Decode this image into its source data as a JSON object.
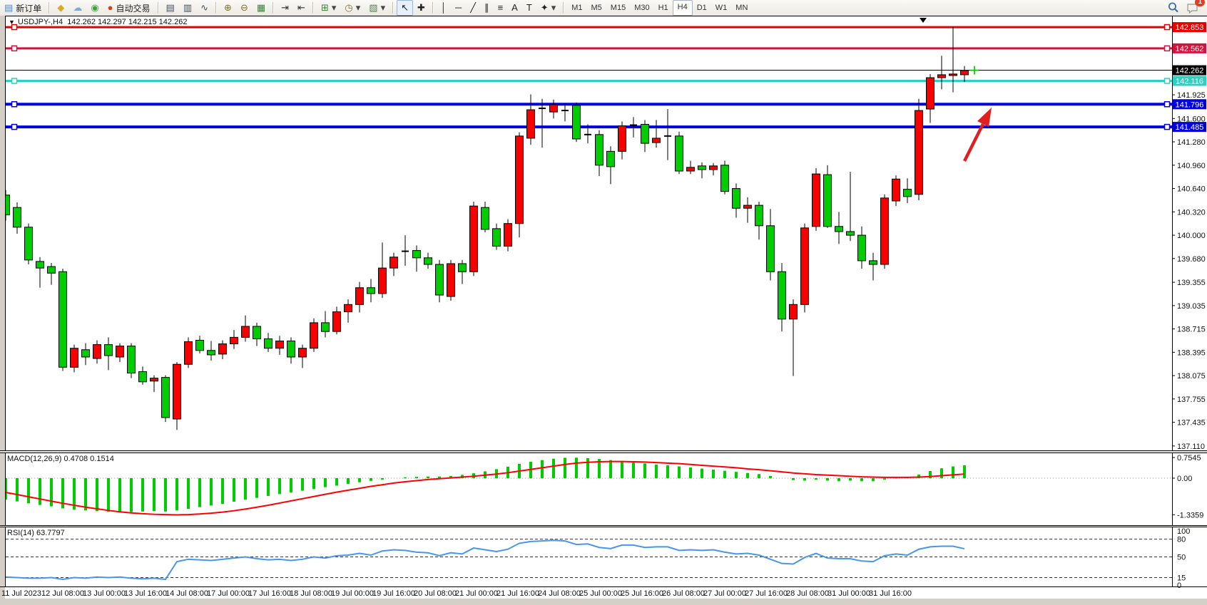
{
  "window": {
    "bg": "#ffffff",
    "chrome_bg": "#ece9e2"
  },
  "toolbar": {
    "new_order_label": "新订单",
    "autotrade_label": "自动交易",
    "chat_badge": "1",
    "icons": {
      "new_order": {
        "glyph": "▤",
        "color": "#5b87c5"
      },
      "gold_chart": {
        "glyph": "◆",
        "color": "#dcaa28"
      },
      "profiles": {
        "glyph": "☁",
        "color": "#7fa8d8"
      },
      "signals": {
        "glyph": "◉",
        "color": "#3fa43f"
      },
      "autotrade": {
        "glyph": "●",
        "color": "#cc4422"
      },
      "bar_chart": {
        "glyph": "▤",
        "color": "#44505c"
      },
      "candle_chart": {
        "glyph": "▥",
        "color": "#44505c"
      },
      "line_chart": {
        "glyph": "∿",
        "color": "#44505c"
      },
      "zoom_in": {
        "glyph": "⊕",
        "color": "#8a6d1f"
      },
      "zoom_out": {
        "glyph": "⊖",
        "color": "#8a6d1f"
      },
      "tile_windows": {
        "glyph": "▦",
        "color": "#3f7f3f"
      },
      "auto_scroll": {
        "glyph": "⇥",
        "color": "#333333"
      },
      "chart_shift": {
        "glyph": "⇤",
        "color": "#333333"
      },
      "indicators": {
        "glyph": "⊞",
        "color": "#2e8b2e"
      },
      "periods": {
        "glyph": "◷",
        "color": "#8a6d1f"
      },
      "templates": {
        "glyph": "▧",
        "color": "#4f7f4f"
      },
      "cursor": {
        "glyph": "↖",
        "color": "#222222"
      },
      "crosshair": {
        "glyph": "✚",
        "color": "#222222"
      },
      "vline": {
        "glyph": "│",
        "color": "#222222"
      },
      "hline": {
        "glyph": "─",
        "color": "#222222"
      },
      "trendline": {
        "glyph": "╱",
        "color": "#222222"
      },
      "channel": {
        "glyph": "∥",
        "color": "#222222"
      },
      "fibonacci": {
        "glyph": "≡",
        "color": "#222222"
      },
      "text": {
        "glyph": "A",
        "color": "#222222"
      },
      "label": {
        "glyph": "T",
        "color": "#222222"
      },
      "shapes": {
        "glyph": "✦",
        "color": "#222222"
      },
      "dropdown": {
        "glyph": "▾",
        "color": "#444444"
      }
    },
    "timeframes": [
      {
        "label": "M1",
        "active": false
      },
      {
        "label": "M5",
        "active": false
      },
      {
        "label": "M15",
        "active": false
      },
      {
        "label": "M30",
        "active": false
      },
      {
        "label": "H1",
        "active": false
      },
      {
        "label": "H4",
        "active": true
      },
      {
        "label": "D1",
        "active": false
      },
      {
        "label": "W1",
        "active": false
      },
      {
        "label": "MN",
        "active": false
      }
    ]
  },
  "chart": {
    "title": {
      "symbol": "USDJPY-,H4",
      "ohlc": "142.262 142.297 142.215 142.262"
    },
    "current_price": "142.262",
    "price_axis": {
      "plain_ticks": [
        "141.925",
        "141.600",
        "141.280",
        "140.960",
        "140.640",
        "140.320",
        "140.000",
        "139.680",
        "139.355",
        "139.035",
        "138.715",
        "138.395",
        "138.075",
        "137.755",
        "137.435",
        "137.110"
      ],
      "badges": [
        {
          "value": "142.853",
          "price": 142.853,
          "bg": "#e80000",
          "fg": "#ffffff"
        },
        {
          "value": "142.562",
          "price": 142.562,
          "bg": "#d2143c",
          "fg": "#ffffff"
        },
        {
          "value": "142.262",
          "price": 142.262,
          "bg": "#000000",
          "fg": "#ffffff"
        },
        {
          "value": "142.116",
          "price": 142.116,
          "bg": "#2fd0c4",
          "fg": "#ffffff"
        },
        {
          "value": "141.796",
          "price": 141.796,
          "bg": "#0000e0",
          "fg": "#ffffff"
        },
        {
          "value": "141.485",
          "price": 141.485,
          "bg": "#0000e0",
          "fg": "#ffffff"
        }
      ]
    },
    "hlines": [
      {
        "price": 142.853,
        "color": "#e80000",
        "width": 3,
        "handles": true
      },
      {
        "price": 142.562,
        "color": "#d2143c",
        "width": 3,
        "handles": true
      },
      {
        "price": 142.262,
        "color": "#000000",
        "width": 1,
        "handles": false
      },
      {
        "price": 142.116,
        "color": "#2fd0c4",
        "width": 3,
        "handles": true
      },
      {
        "price": 141.796,
        "color": "#0000e0",
        "width": 4,
        "handles": true
      },
      {
        "price": 141.485,
        "color": "#0000e0",
        "width": 4,
        "handles": true
      }
    ]
  },
  "chart_data": {
    "type": "candlestick",
    "title": "USDJPY- H4",
    "bull_color": "#f60000",
    "bear_color": "#00cd00",
    "price_range": [
      137.05,
      143.01
    ],
    "x_labels": [
      "11 Jul 2023",
      "12 Jul 08:00",
      "13 Jul 00:00",
      "13 Jul 16:00",
      "14 Jul 08:00",
      "17 Jul 00:00",
      "17 Jul 16:00",
      "18 Jul 08:00",
      "19 Jul 00:00",
      "19 Jul 16:00",
      "20 Jul 08:00",
      "21 Jul 00:00",
      "21 Jul 16:00",
      "24 Jul 08:00",
      "25 Jul 00:00",
      "25 Jul 16:00",
      "26 Jul 08:00",
      "27 Jul 00:00",
      "27 Jul 16:00",
      "28 Jul 08:00",
      "31 Jul 00:00",
      "31 Jul 16:00"
    ],
    "candles": [
      [
        140.55,
        140.62,
        140.2,
        140.28
      ],
      [
        140.38,
        140.45,
        140.02,
        140.11
      ],
      [
        140.11,
        140.16,
        139.6,
        139.66
      ],
      [
        139.64,
        139.7,
        139.28,
        139.55
      ],
      [
        139.57,
        139.62,
        139.32,
        139.48
      ],
      [
        139.5,
        139.54,
        138.14,
        138.19
      ],
      [
        138.19,
        138.5,
        138.12,
        138.45
      ],
      [
        138.43,
        138.52,
        138.22,
        138.33
      ],
      [
        138.31,
        138.56,
        138.24,
        138.5
      ],
      [
        138.5,
        138.6,
        138.15,
        138.35
      ],
      [
        138.33,
        138.52,
        138.26,
        138.48
      ],
      [
        138.48,
        138.52,
        138.04,
        138.11
      ],
      [
        138.13,
        138.2,
        137.95,
        137.99
      ],
      [
        138.0,
        138.08,
        137.85,
        138.04
      ],
      [
        138.05,
        138.08,
        137.44,
        137.5
      ],
      [
        137.48,
        138.26,
        137.33,
        138.23
      ],
      [
        138.23,
        138.6,
        138.18,
        138.54
      ],
      [
        138.56,
        138.62,
        138.38,
        138.42
      ],
      [
        138.42,
        138.55,
        138.28,
        138.36
      ],
      [
        138.37,
        138.56,
        138.3,
        138.51
      ],
      [
        138.51,
        138.7,
        138.44,
        138.6
      ],
      [
        138.6,
        138.9,
        138.54,
        138.75
      ],
      [
        138.75,
        138.8,
        138.48,
        138.58
      ],
      [
        138.58,
        138.66,
        138.4,
        138.45
      ],
      [
        138.45,
        138.62,
        138.36,
        138.55
      ],
      [
        138.55,
        138.6,
        138.24,
        138.33
      ],
      [
        138.33,
        138.5,
        138.18,
        138.45
      ],
      [
        138.45,
        138.86,
        138.4,
        138.8
      ],
      [
        138.8,
        138.96,
        138.6,
        138.68
      ],
      [
        138.68,
        139.02,
        138.64,
        138.95
      ],
      [
        138.95,
        139.12,
        138.8,
        139.05
      ],
      [
        139.05,
        139.36,
        138.94,
        139.28
      ],
      [
        139.28,
        139.4,
        139.08,
        139.2
      ],
      [
        139.2,
        139.9,
        139.14,
        139.55
      ],
      [
        139.55,
        139.76,
        139.44,
        139.7
      ],
      [
        139.79,
        140.0,
        139.58,
        139.78
      ],
      [
        139.79,
        139.86,
        139.5,
        139.69
      ],
      [
        139.69,
        139.76,
        139.54,
        139.6
      ],
      [
        139.6,
        139.66,
        139.08,
        139.18
      ],
      [
        139.16,
        139.66,
        139.1,
        139.61
      ],
      [
        139.61,
        139.66,
        139.33,
        139.5
      ],
      [
        139.5,
        140.46,
        139.44,
        140.4
      ],
      [
        140.38,
        140.46,
        140.04,
        140.08
      ],
      [
        140.09,
        140.16,
        139.8,
        139.85
      ],
      [
        139.85,
        140.22,
        139.78,
        140.16
      ],
      [
        140.16,
        141.41,
        139.97,
        141.36
      ],
      [
        141.33,
        141.93,
        141.24,
        141.72
      ],
      [
        141.73,
        141.87,
        141.2,
        141.74
      ],
      [
        141.69,
        141.86,
        141.6,
        141.79
      ],
      [
        141.72,
        141.81,
        141.56,
        141.71
      ],
      [
        141.78,
        141.82,
        141.28,
        141.32
      ],
      [
        141.39,
        141.52,
        141.26,
        141.38
      ],
      [
        141.38,
        141.44,
        140.81,
        140.96
      ],
      [
        141.15,
        141.22,
        140.7,
        140.94
      ],
      [
        141.15,
        141.56,
        141.04,
        141.5
      ],
      [
        141.5,
        141.62,
        141.34,
        141.51
      ],
      [
        141.52,
        141.58,
        141.14,
        141.26
      ],
      [
        141.27,
        141.58,
        141.2,
        141.33
      ],
      [
        141.35,
        141.73,
        141.03,
        141.36
      ],
      [
        141.36,
        141.42,
        140.84,
        140.88
      ],
      [
        140.88,
        141.02,
        140.84,
        140.93
      ],
      [
        140.95,
        141.0,
        140.78,
        140.9
      ],
      [
        140.9,
        140.99,
        140.82,
        140.95
      ],
      [
        140.96,
        141.02,
        140.56,
        140.6
      ],
      [
        140.64,
        140.71,
        140.24,
        140.37
      ],
      [
        140.37,
        140.52,
        140.17,
        140.41
      ],
      [
        140.41,
        140.46,
        139.94,
        140.13
      ],
      [
        140.13,
        140.36,
        139.38,
        139.5
      ],
      [
        139.5,
        139.62,
        138.68,
        138.85
      ],
      [
        138.85,
        139.12,
        138.07,
        139.05
      ],
      [
        139.05,
        140.16,
        138.94,
        140.1
      ],
      [
        140.12,
        140.92,
        140.06,
        140.84
      ],
      [
        140.83,
        140.96,
        140.1,
        140.12
      ],
      [
        140.12,
        140.32,
        139.88,
        140.05
      ],
      [
        140.05,
        140.87,
        139.92,
        140.0
      ],
      [
        140.0,
        140.12,
        139.54,
        139.65
      ],
      [
        139.65,
        139.76,
        139.38,
        139.6
      ],
      [
        139.6,
        140.56,
        139.54,
        140.51
      ],
      [
        140.47,
        140.82,
        140.4,
        140.77
      ],
      [
        140.63,
        140.78,
        140.44,
        140.53
      ],
      [
        140.56,
        141.87,
        140.48,
        141.71
      ],
      [
        141.73,
        142.21,
        141.54,
        142.16
      ],
      [
        142.16,
        142.46,
        142.0,
        142.2
      ],
      [
        142.19,
        142.86,
        141.96,
        142.21
      ],
      [
        142.2,
        142.32,
        142.1,
        142.26
      ]
    ],
    "indicators": {
      "macd": {
        "label": "MACD(12,26,9)",
        "values_text": "0.4708 0.1514",
        "axis_ticks": [
          "0.7545",
          "0.00",
          "-1.3359"
        ],
        "axis_values": [
          0.7545,
          0.0,
          -1.3359
        ],
        "hist_color": "#00cd00",
        "signal_color": "#ff0000",
        "histogram": [
          -0.78,
          -0.85,
          -0.92,
          -0.98,
          -1.03,
          -1.1,
          -1.15,
          -1.18,
          -1.2,
          -1.23,
          -1.25,
          -1.24,
          -1.22,
          -1.2,
          -1.22,
          -1.18,
          -1.12,
          -1.06,
          -1.0,
          -0.94,
          -0.86,
          -0.78,
          -0.72,
          -0.65,
          -0.58,
          -0.52,
          -0.46,
          -0.4,
          -0.33,
          -0.27,
          -0.21,
          -0.15,
          -0.1,
          -0.05,
          0.0,
          0.03,
          0.05,
          0.06,
          0.06,
          0.08,
          0.12,
          0.18,
          0.25,
          0.33,
          0.42,
          0.52,
          0.6,
          0.66,
          0.71,
          0.745,
          0.75,
          0.73,
          0.7,
          0.66,
          0.62,
          0.58,
          0.54,
          0.5,
          0.47,
          0.43,
          0.39,
          0.35,
          0.31,
          0.27,
          0.23,
          0.19,
          0.15,
          0.08,
          0.0,
          -0.07,
          -0.09,
          -0.05,
          -0.09,
          -0.11,
          -0.09,
          -0.11,
          -0.11,
          -0.05,
          -0.01,
          0.03,
          0.13,
          0.26,
          0.36,
          0.43,
          0.4708
        ],
        "signal": [
          -0.52,
          -0.6,
          -0.68,
          -0.76,
          -0.84,
          -0.92,
          -0.99,
          -1.06,
          -1.12,
          -1.18,
          -1.23,
          -1.27,
          -1.3,
          -1.32,
          -1.33,
          -1.34,
          -1.33,
          -1.31,
          -1.28,
          -1.24,
          -1.19,
          -1.13,
          -1.06,
          -0.99,
          -0.91,
          -0.83,
          -0.75,
          -0.67,
          -0.59,
          -0.51,
          -0.44,
          -0.37,
          -0.3,
          -0.24,
          -0.18,
          -0.13,
          -0.09,
          -0.05,
          -0.02,
          0.01,
          0.04,
          0.07,
          0.11,
          0.15,
          0.2,
          0.26,
          0.32,
          0.38,
          0.44,
          0.5,
          0.55,
          0.58,
          0.6,
          0.61,
          0.61,
          0.6,
          0.59,
          0.57,
          0.55,
          0.53,
          0.5,
          0.47,
          0.44,
          0.41,
          0.38,
          0.34,
          0.31,
          0.27,
          0.23,
          0.19,
          0.16,
          0.13,
          0.11,
          0.09,
          0.07,
          0.05,
          0.04,
          0.03,
          0.03,
          0.03,
          0.04,
          0.06,
          0.09,
          0.12,
          0.1514
        ]
      },
      "rsi": {
        "label": "RSI(14)",
        "value_text": "63.7797",
        "axis_ticks": [
          "100",
          "80",
          "50",
          "15",
          "0"
        ],
        "levels": [
          80,
          50,
          15
        ],
        "color": "#4696ec",
        "values": [
          16,
          15,
          14,
          14,
          15,
          12,
          15,
          14,
          16,
          15,
          16,
          14,
          13,
          14,
          12,
          42,
          46,
          45,
          44,
          46,
          48,
          50,
          47,
          45,
          46,
          44,
          46,
          50,
          48,
          52,
          53,
          56,
          53,
          60,
          62,
          61,
          58,
          57,
          52,
          57,
          55,
          65,
          62,
          59,
          63,
          73,
          76,
          77,
          78,
          77,
          71,
          72,
          66,
          64,
          70,
          70,
          66,
          67,
          67,
          61,
          62,
          61,
          62,
          58,
          55,
          56,
          53,
          46,
          39,
          38,
          49,
          56,
          48,
          47,
          47,
          43,
          42,
          52,
          55,
          53,
          63,
          67,
          68,
          68,
          63.78
        ]
      }
    }
  },
  "annotations": {
    "arrow": {
      "color": "#e02020"
    },
    "last_price_marker": {
      "color": "#00c000"
    },
    "shift_marker": {
      "color": "#000000"
    }
  }
}
